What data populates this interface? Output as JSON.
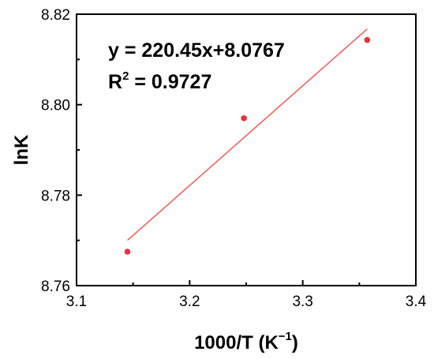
{
  "chart_data": {
    "type": "scatter",
    "xlabel": "1000/T (K",
    "xlabel_sup": "−1",
    "xlabel_close": ")",
    "ylabel": "lnK",
    "xlim": [
      3.1,
      3.4
    ],
    "ylim": [
      8.76,
      8.82
    ],
    "xticks": [
      3.1,
      3.2,
      3.3,
      3.4
    ],
    "xtick_labels": [
      "3.1",
      "3.2",
      "3.3",
      "3.4"
    ],
    "yticks": [
      8.76,
      8.78,
      8.8,
      8.82
    ],
    "ytick_labels": [
      "8.76",
      "8.78",
      "8.80",
      "8.82"
    ],
    "series": [
      {
        "x": [
          3.145,
          3.248,
          3.357
        ],
        "y": [
          8.7675,
          8.797,
          8.8143
        ],
        "color": "#e8313a"
      }
    ],
    "fit": {
      "slope": 0.22045,
      "intercept": 8.0767,
      "x_range": [
        3.145,
        3.357
      ],
      "color": "#f05a5a"
    },
    "annotation": {
      "equation": "y = 220.45x+8.0767",
      "r2_prefix": "R",
      "r2_sup": "2",
      "r2_value": " = 0.9727"
    }
  }
}
